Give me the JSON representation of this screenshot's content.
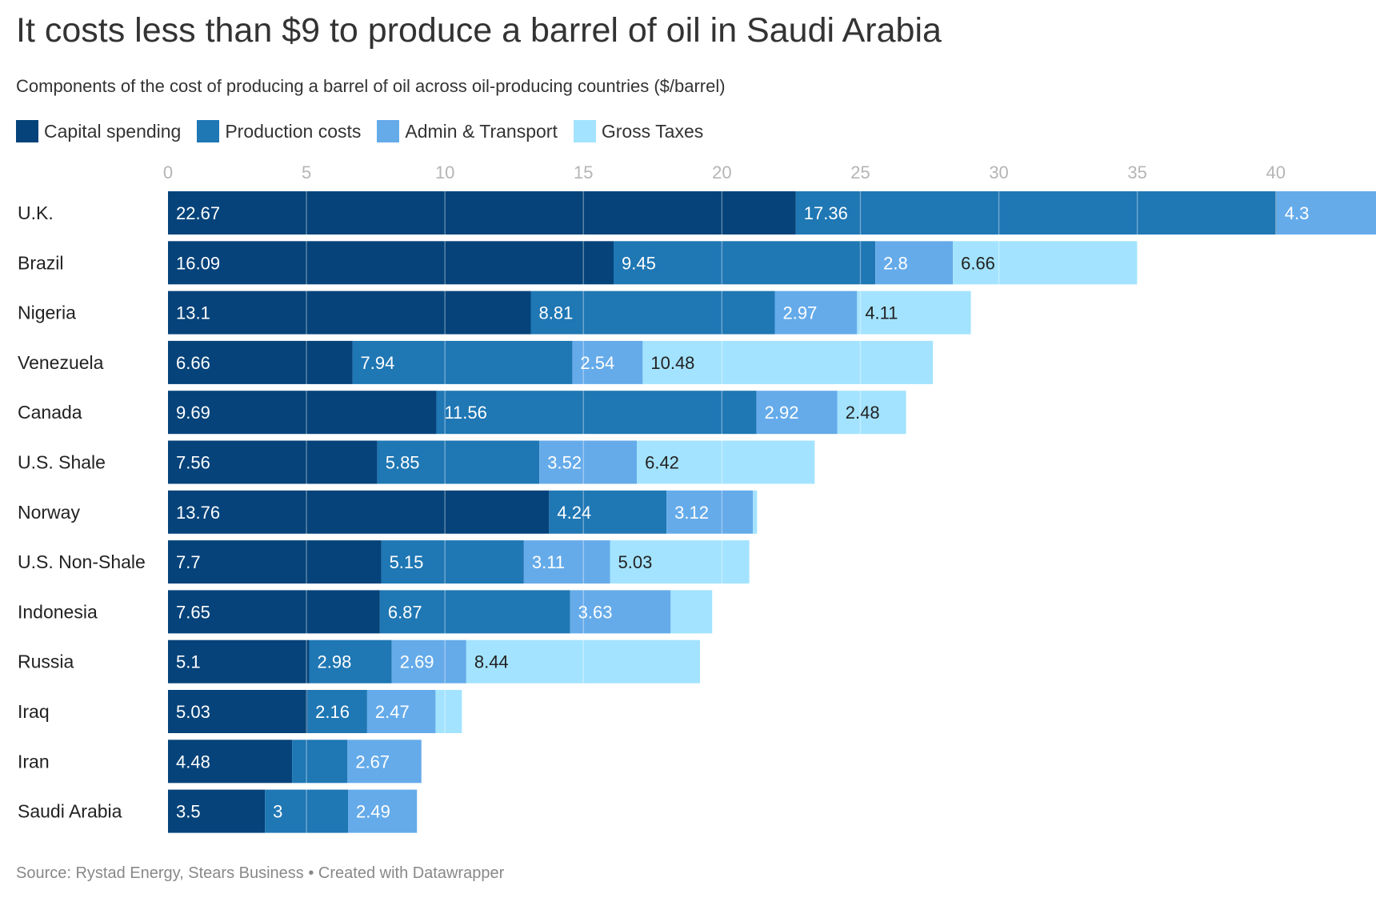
{
  "title": "It costs less than $9 to produce a barrel of oil in Saudi Arabia",
  "subtitle": "Components of the cost of producing a barrel of oil across oil-producing countries ($/barrel)",
  "source": "Source: Rystad Energy, Stears Business • Created with Datawrapper",
  "chart_data": {
    "type": "bar",
    "orientation": "horizontal",
    "stacked": true,
    "title": "It costs less than $9 to produce a barrel of oil in Saudi Arabia",
    "subtitle": "Components of the cost of producing a barrel of oil across oil-producing countries ($/barrel)",
    "xlim": [
      0,
      43.3
    ],
    "xticks": [
      0,
      5,
      10,
      15,
      20,
      25,
      30,
      35,
      40
    ],
    "grid": "vertical",
    "legend_position": "top-left",
    "categories": [
      "U.K.",
      "Brazil",
      "Nigeria",
      "Venezuela",
      "Canada",
      "U.S. Shale",
      "Norway",
      "U.S. Non-Shale",
      "Indonesia",
      "Russia",
      "Iraq",
      "Iran",
      "Saudi Arabia"
    ],
    "series": [
      {
        "name": "Capital spending",
        "color": "#05437a",
        "label_color": "#ffffff",
        "values": [
          22.67,
          16.09,
          13.1,
          6.66,
          9.69,
          7.56,
          13.76,
          7.7,
          7.65,
          5.1,
          5.03,
          4.48,
          3.5
        ],
        "labels": [
          "22.67",
          "16.09",
          "13.1",
          "6.66",
          "9.69",
          "7.56",
          "13.76",
          "7.7",
          "7.65",
          "5.1",
          "5.03",
          "4.48",
          "3.5"
        ]
      },
      {
        "name": "Production costs",
        "color": "#1f77b4",
        "label_color": "#ffffff",
        "values": [
          17.36,
          9.45,
          8.81,
          7.94,
          11.56,
          5.85,
          4.24,
          5.15,
          6.87,
          2.98,
          2.16,
          2.0,
          3.0
        ],
        "labels": [
          "17.36",
          "9.45",
          "8.81",
          "7.94",
          "11.56",
          "5.85",
          "4.24",
          "5.15",
          "6.87",
          "2.98",
          "2.16",
          "",
          "3"
        ]
      },
      {
        "name": "Admin & Transport",
        "color": "#65abea",
        "label_color": "#ffffff",
        "values": [
          4.3,
          2.8,
          2.97,
          2.54,
          2.92,
          3.52,
          3.12,
          3.11,
          3.63,
          2.69,
          2.47,
          2.67,
          2.49
        ],
        "labels": [
          "4.3",
          "2.8",
          "2.97",
          "2.54",
          "2.92",
          "3.52",
          "3.12",
          "3.11",
          "3.63",
          "2.69",
          "2.47",
          "2.67",
          "2.49"
        ]
      },
      {
        "name": "Gross Taxes",
        "color": "#a3e3ff",
        "label_color": "#222222",
        "values": [
          0,
          6.66,
          4.11,
          10.48,
          2.48,
          6.42,
          0.15,
          5.03,
          1.5,
          8.44,
          0.95,
          0,
          0
        ],
        "labels": [
          "",
          "6.66",
          "4.11",
          "10.48",
          "2.48",
          "6.42",
          "",
          "5.03",
          "",
          "8.44",
          "",
          "",
          ""
        ]
      }
    ]
  }
}
